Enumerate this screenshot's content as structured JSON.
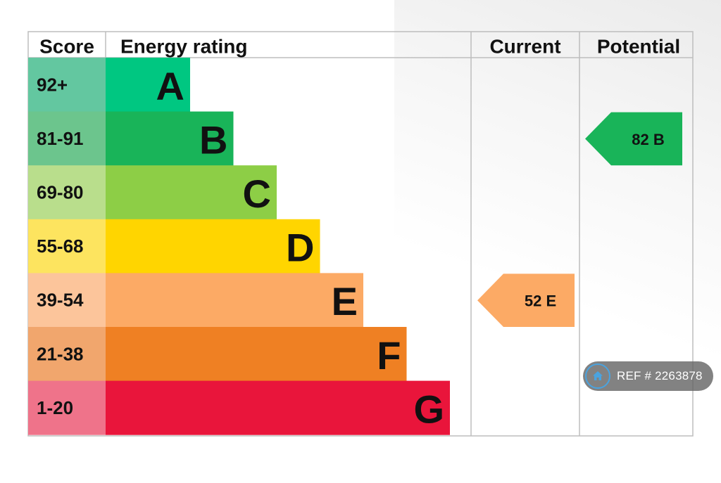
{
  "chart_data": {
    "type": "table",
    "headers": {
      "score": "Score",
      "rating": "Energy rating",
      "current": "Current",
      "potential": "Potential"
    },
    "bands": [
      {
        "score": "92+",
        "letter": "A",
        "color": "#00c781",
        "score_bg": "#63c7a0"
      },
      {
        "score": "81-91",
        "letter": "B",
        "color": "#19b459",
        "score_bg": "#6cc58d"
      },
      {
        "score": "69-80",
        "letter": "C",
        "color": "#8dce46",
        "score_bg": "#b9de8c"
      },
      {
        "score": "55-68",
        "letter": "D",
        "color": "#ffd500",
        "score_bg": "#fde45f"
      },
      {
        "score": "39-54",
        "letter": "E",
        "color": "#fcaa65",
        "score_bg": "#fcc59b"
      },
      {
        "score": "21-38",
        "letter": "F",
        "color": "#ef8023",
        "score_bg": "#f1a66d"
      },
      {
        "score": "1-20",
        "letter": "G",
        "color": "#e9153b",
        "score_bg": "#ef738a"
      }
    ],
    "current": {
      "value": 52,
      "letter": "E",
      "label": "52  E",
      "color": "#fcaa65"
    },
    "potential": {
      "value": 82,
      "letter": "B",
      "label": "82  B",
      "color": "#19b459"
    }
  },
  "watermark": {
    "text": "REF # 2263878",
    "icon": "home-icon",
    "accent": "#4aa3df"
  }
}
